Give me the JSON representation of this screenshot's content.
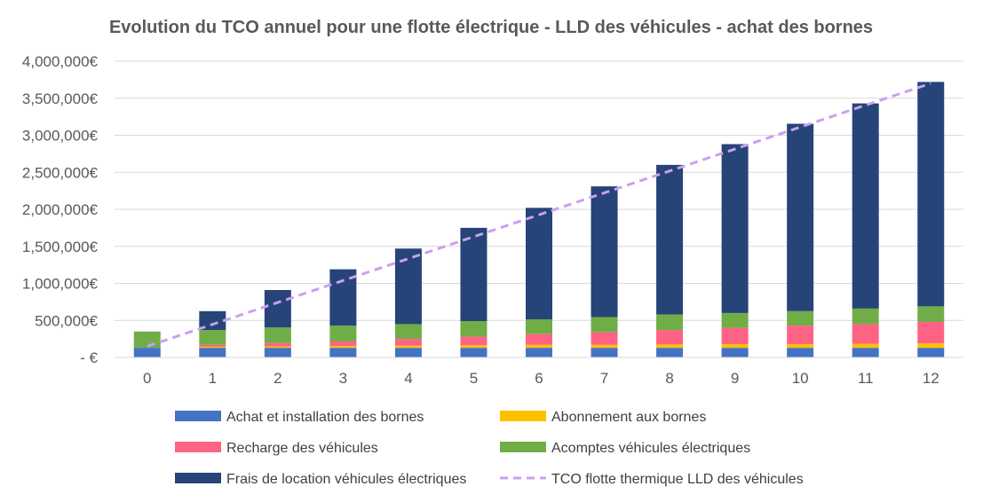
{
  "chart_data": {
    "type": "bar",
    "stacked": true,
    "title": "Evolution du TCO annuel pour une flotte électrique - LLD des véhicules - achat des bornes",
    "categories": [
      "0",
      "1",
      "2",
      "3",
      "4",
      "5",
      "6",
      "7",
      "8",
      "9",
      "10",
      "11",
      "12"
    ],
    "y_tick_labels": [
      "-  €",
      "500,000€",
      "1,000,000€",
      "1,500,000€",
      "2,000,000€",
      "2,500,000€",
      "3,000,000€",
      "3,500,000€",
      "4,000,000€"
    ],
    "ylim": [
      0,
      4000000
    ],
    "grid": true,
    "legend_position": "bottom",
    "series": [
      {
        "name": "Achat et installation des bornes",
        "color": "#4472C4",
        "kind": "bar",
        "values": [
          130000,
          130000,
          130000,
          130000,
          130000,
          130000,
          130000,
          130000,
          130000,
          130000,
          130000,
          130000,
          130000
        ]
      },
      {
        "name": "Abonnement aux bornes",
        "color": "#FFC000",
        "kind": "bar",
        "values": [
          0,
          15000,
          20000,
          25000,
          30000,
          35000,
          40000,
          40000,
          45000,
          50000,
          50000,
          55000,
          60000
        ]
      },
      {
        "name": "Recharge des véhicules",
        "color": "#FF6384",
        "kind": "bar",
        "values": [
          0,
          25000,
          45000,
          60000,
          90000,
          115000,
          145000,
          170000,
          195000,
          220000,
          250000,
          265000,
          290000
        ]
      },
      {
        "name": "Acomptes véhicules électriques",
        "color": "#70AD47",
        "kind": "bar",
        "values": [
          220000,
          200000,
          210000,
          215000,
          200000,
          210000,
          200000,
          205000,
          210000,
          200000,
          195000,
          210000,
          210000
        ]
      },
      {
        "name": "Frais de location véhicules électriques",
        "color": "#264478",
        "kind": "bar",
        "values": [
          0,
          255000,
          505000,
          760000,
          1020000,
          1260000,
          1505000,
          1765000,
          2020000,
          2280000,
          2530000,
          2770000,
          3030000
        ]
      },
      {
        "name": "TCO flotte thermique LLD des véhicules",
        "color": "#C9A0F0",
        "kind": "line",
        "values": [
          150000,
          446000,
          742000,
          1038000,
          1334000,
          1630000,
          1926000,
          2222000,
          2518000,
          2814000,
          3110000,
          3406000,
          3700000
        ]
      }
    ]
  }
}
